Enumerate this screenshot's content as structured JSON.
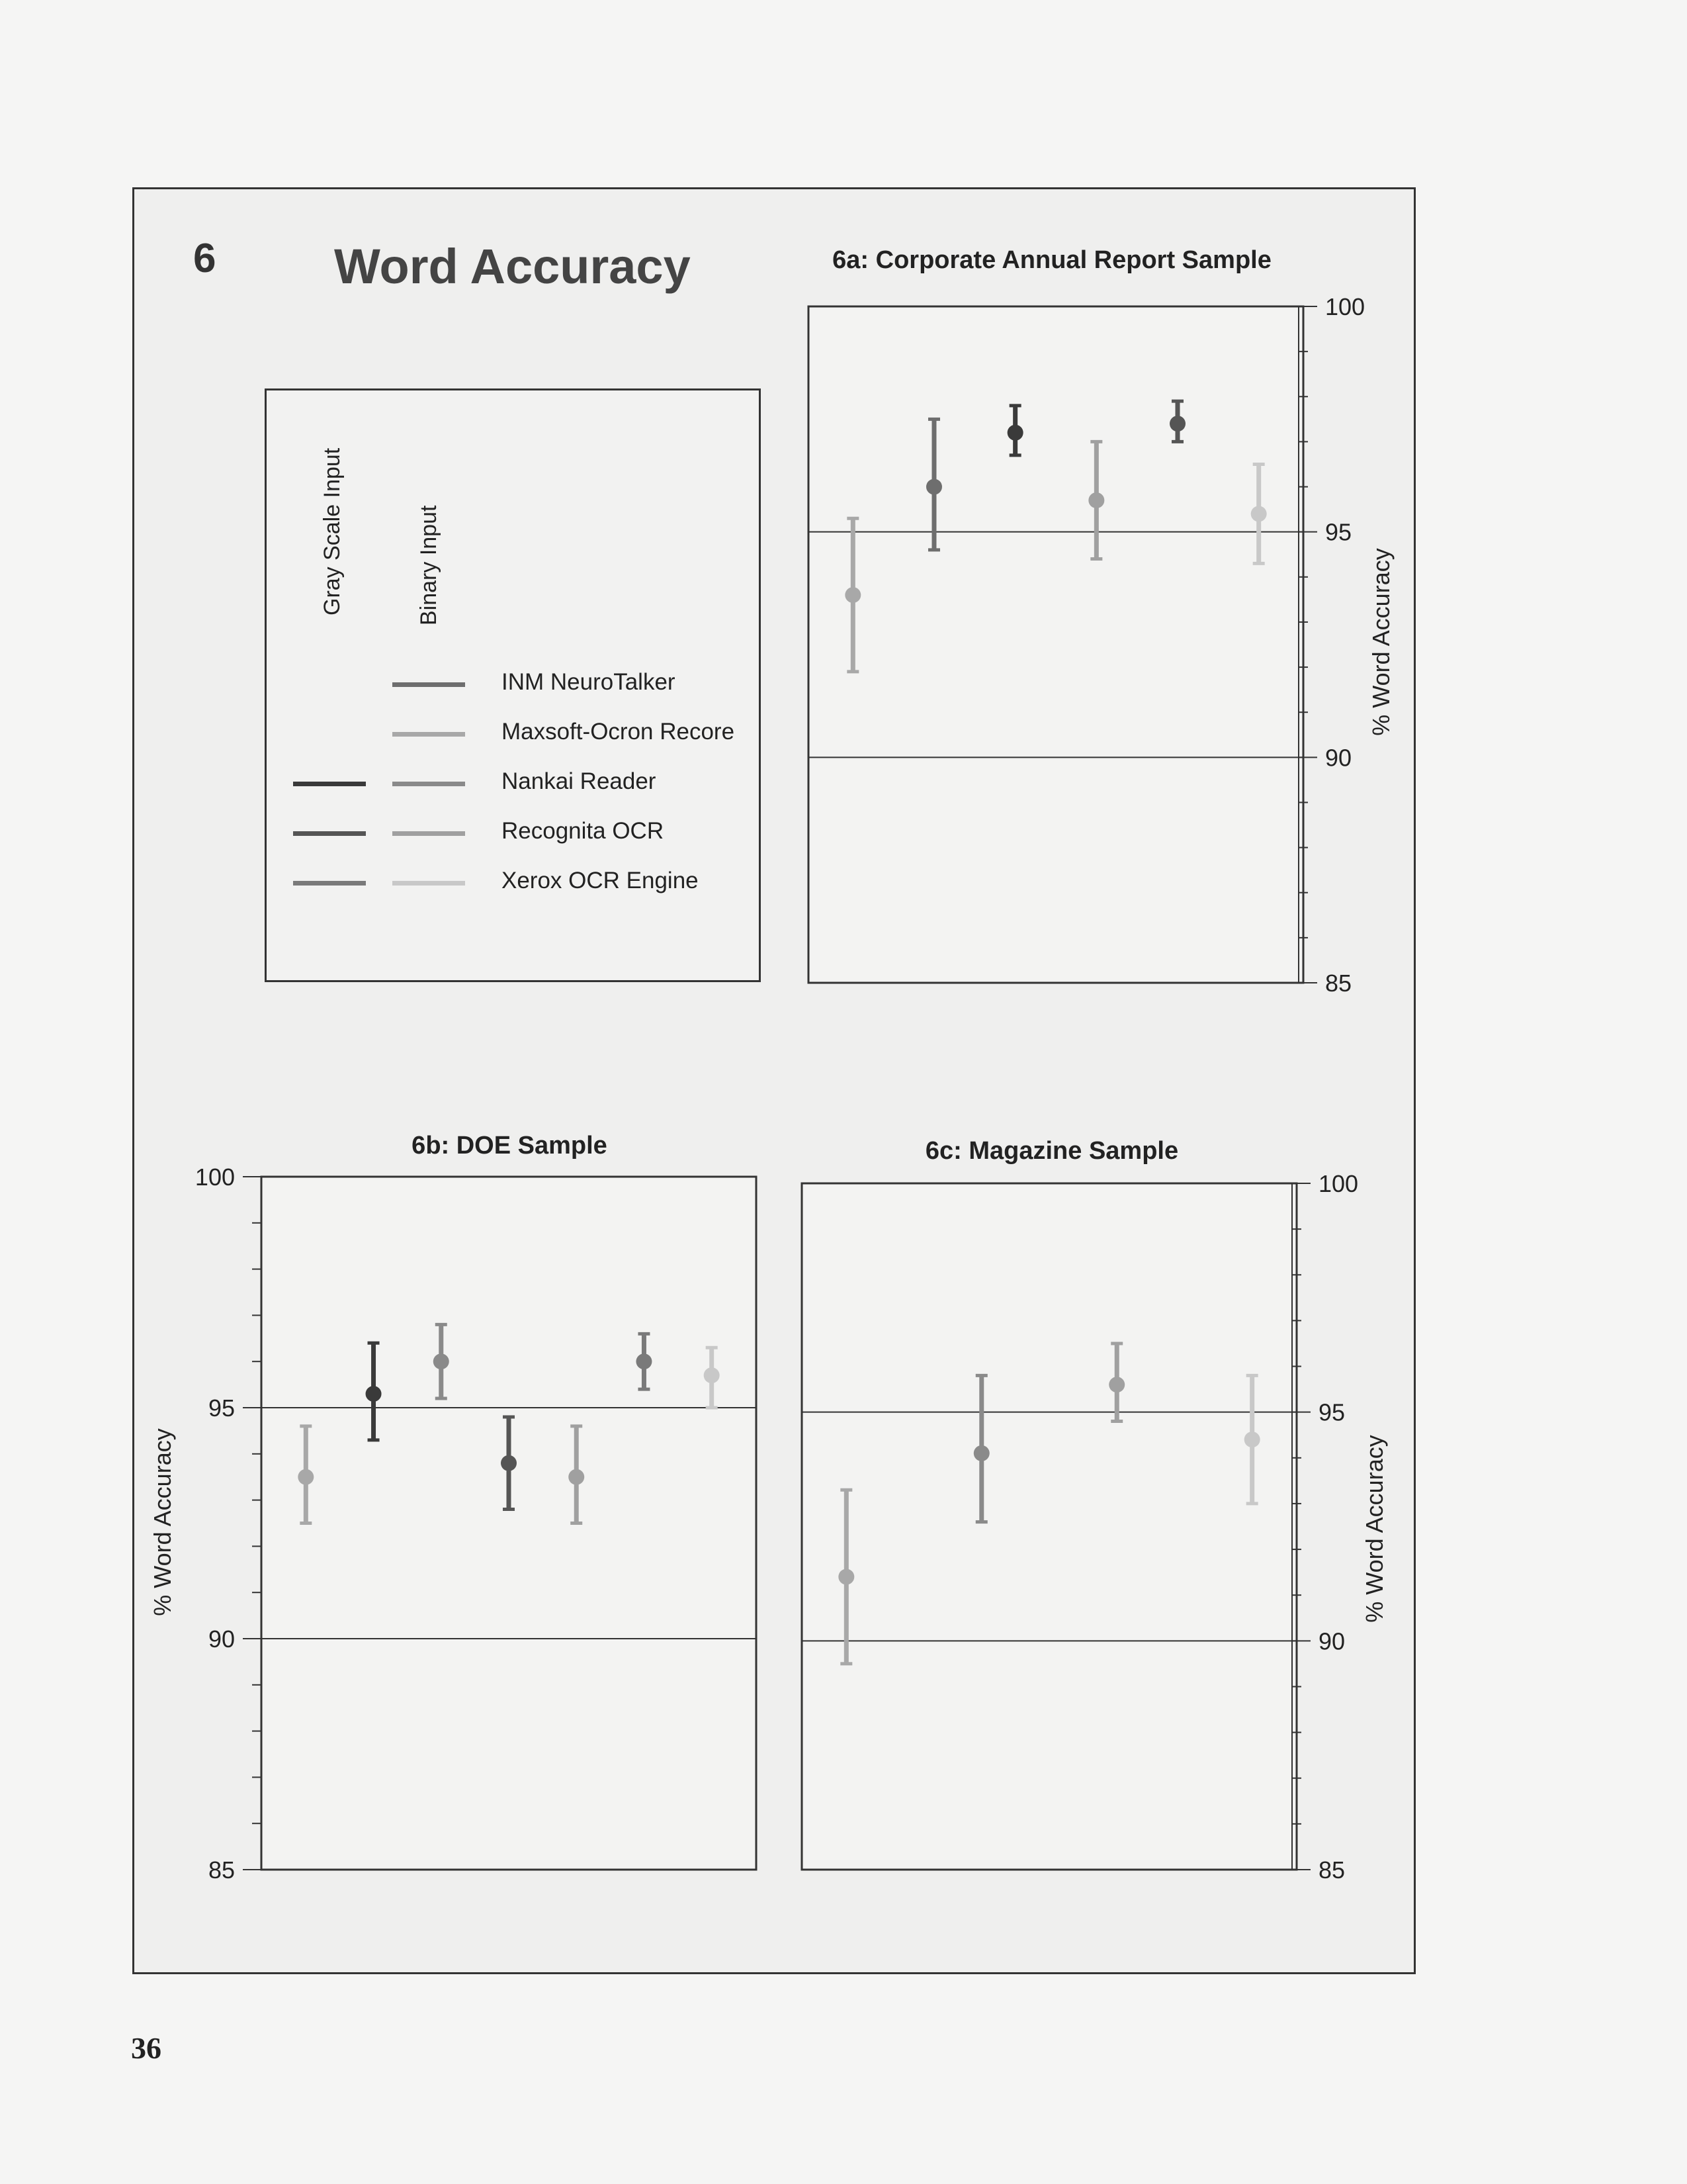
{
  "figure": {
    "number": "6",
    "title": "Word Accuracy"
  },
  "legend": {
    "columns": [
      "Gray Scale Input",
      "Binary Input"
    ],
    "entries": [
      {
        "label": "INM NeuroTalker",
        "gray_color": null,
        "binary_color": "#6e6e6e"
      },
      {
        "label": "Maxsoft-Ocron Recore",
        "gray_color": null,
        "binary_color": "#a8a8a8"
      },
      {
        "label": "Nankai Reader",
        "gray_color": "#3a3a3a",
        "binary_color": "#8a8a8a"
      },
      {
        "label": "Recognita OCR",
        "gray_color": "#555555",
        "binary_color": "#a0a0a0"
      },
      {
        "label": "Xerox OCR Engine",
        "gray_color": "#7a7a7a",
        "binary_color": "#c8c8c8"
      }
    ]
  },
  "page_number": "36",
  "chart_data": [
    {
      "id": "6a",
      "type": "scatter",
      "title": "6a: Corporate Annual Report Sample",
      "ylabel": "% Word Accuracy",
      "ylim": [
        85,
        100
      ],
      "yticks": [
        "85",
        "90",
        "95",
        "100"
      ],
      "y_axis_side": "right",
      "gridlines": [
        90,
        95
      ],
      "points": [
        {
          "series": "Maxsoft-Ocron Recore (Binary Input)",
          "y": 93.6,
          "low": 91.9,
          "high": 95.3,
          "color": "#a8a8a8"
        },
        {
          "series": "INM NeuroTalker (Binary Input)",
          "y": 96.0,
          "low": 94.6,
          "high": 97.5,
          "color": "#6e6e6e"
        },
        {
          "series": "Nankai Reader (Gray Scale Input)",
          "y": 97.2,
          "low": 96.7,
          "high": 97.8,
          "color": "#3a3a3a"
        },
        {
          "series": "Recognita OCR (Binary Input)",
          "y": 95.7,
          "low": 94.4,
          "high": 97.0,
          "color": "#a0a0a0"
        },
        {
          "series": "Recognita OCR (Gray Scale Input)",
          "y": 97.4,
          "low": 97.0,
          "high": 97.9,
          "color": "#555555"
        },
        {
          "series": "Xerox OCR Engine (Binary Input)",
          "y": 95.4,
          "low": 94.3,
          "high": 96.5,
          "color": "#c8c8c8"
        }
      ]
    },
    {
      "id": "6b",
      "type": "scatter",
      "title": "6b: DOE Sample",
      "ylabel": "% Word Accuracy",
      "ylim": [
        85,
        100
      ],
      "yticks": [
        "85",
        "90",
        "95",
        "100"
      ],
      "y_axis_side": "left",
      "gridlines": [
        90,
        95
      ],
      "points": [
        {
          "series": "Maxsoft-Ocron Recore (Binary Input)",
          "y": 93.5,
          "low": 92.5,
          "high": 94.6,
          "color": "#a8a8a8"
        },
        {
          "series": "Nankai Reader (Gray Scale Input)",
          "y": 95.3,
          "low": 94.3,
          "high": 96.4,
          "color": "#3a3a3a"
        },
        {
          "series": "Nankai Reader (Binary Input)",
          "y": 96.0,
          "low": 95.2,
          "high": 96.8,
          "color": "#8a8a8a"
        },
        {
          "series": "Recognita OCR (Gray Scale Input)",
          "y": 93.8,
          "low": 92.8,
          "high": 94.8,
          "color": "#555555"
        },
        {
          "series": "Recognita OCR (Binary Input)",
          "y": 93.5,
          "low": 92.5,
          "high": 94.6,
          "color": "#a0a0a0"
        },
        {
          "series": "Xerox OCR Engine (Gray Scale Input)",
          "y": 96.0,
          "low": 95.4,
          "high": 96.6,
          "color": "#7a7a7a"
        },
        {
          "series": "Xerox OCR Engine (Binary Input)",
          "y": 95.7,
          "low": 95.0,
          "high": 96.3,
          "color": "#c8c8c8"
        }
      ]
    },
    {
      "id": "6c",
      "type": "scatter",
      "title": "6c: Magazine Sample",
      "ylabel": "% Word Accuracy",
      "ylim": [
        85,
        100
      ],
      "yticks": [
        "85",
        "90",
        "95",
        "100"
      ],
      "y_axis_side": "right",
      "gridlines": [
        90,
        95
      ],
      "points": [
        {
          "series": "Maxsoft-Ocron Recore (Binary Input)",
          "y": 91.4,
          "low": 89.5,
          "high": 93.3,
          "color": "#a8a8a8"
        },
        {
          "series": "Nankai Reader (Binary Input)",
          "y": 94.1,
          "low": 92.6,
          "high": 95.8,
          "color": "#8a8a8a"
        },
        {
          "series": "Recognita OCR (Binary Input)",
          "y": 95.6,
          "low": 94.8,
          "high": 96.5,
          "color": "#a0a0a0"
        },
        {
          "series": "Xerox OCR Engine (Binary Input)",
          "y": 94.4,
          "low": 93.0,
          "high": 95.8,
          "color": "#c8c8c8"
        }
      ]
    }
  ]
}
